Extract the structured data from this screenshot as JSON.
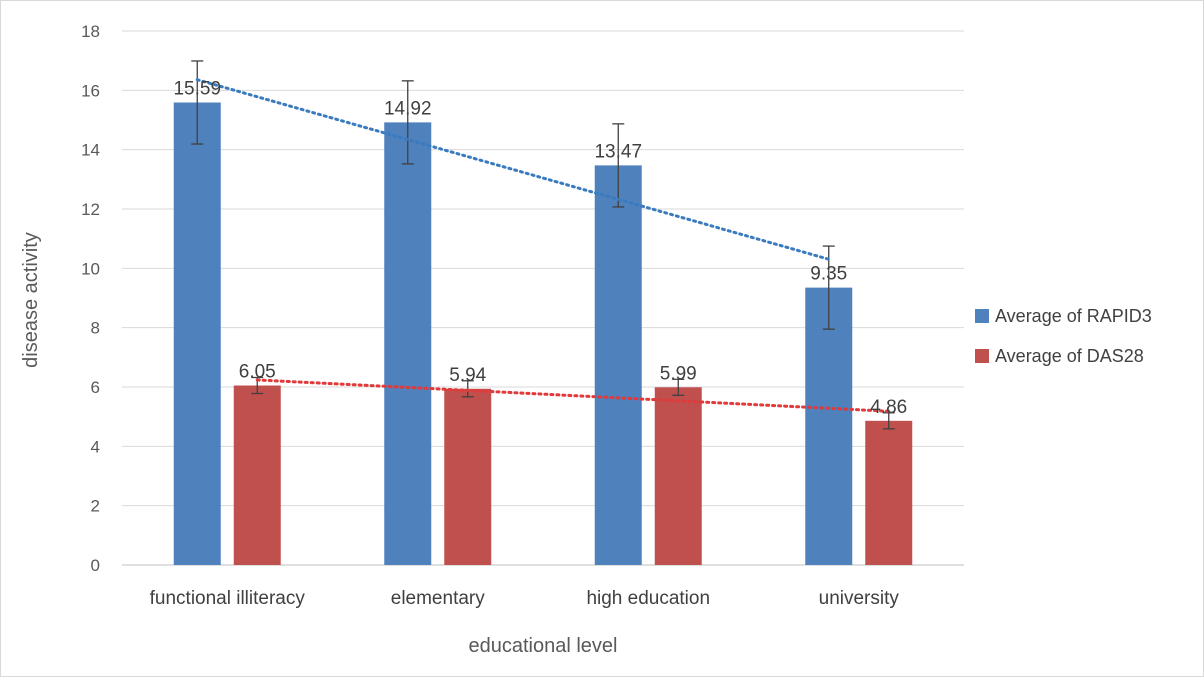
{
  "chart_data": {
    "type": "bar",
    "title": "",
    "xlabel": "educational level",
    "ylabel": "disease activity",
    "ylim": [
      0,
      18
    ],
    "ytick_step": 2,
    "grid": true,
    "legend_position": "right",
    "categories": [
      "functional illiteracy",
      "elementary",
      "high education",
      "university"
    ],
    "series": [
      {
        "name": "Average of RAPID3",
        "color": "#4f81bd",
        "values": [
          15.59,
          14.92,
          13.47,
          9.35
        ],
        "labels": [
          "15.59",
          "14.92",
          "13.47",
          "9.35"
        ],
        "error": [
          1.4,
          1.4,
          1.4,
          1.4
        ],
        "trendline": {
          "type": "linear",
          "style": "dotted",
          "color": "#3a7abf"
        }
      },
      {
        "name": "Average of DAS28",
        "color": "#c0504d",
        "values": [
          6.05,
          5.94,
          5.99,
          4.86
        ],
        "labels": [
          "6.05",
          "5.94",
          "5.99",
          "4.86"
        ],
        "error": [
          0.27,
          0.27,
          0.27,
          0.27
        ],
        "trendline": {
          "type": "linear",
          "style": "dotted",
          "color": "#e03a3a"
        }
      }
    ]
  }
}
